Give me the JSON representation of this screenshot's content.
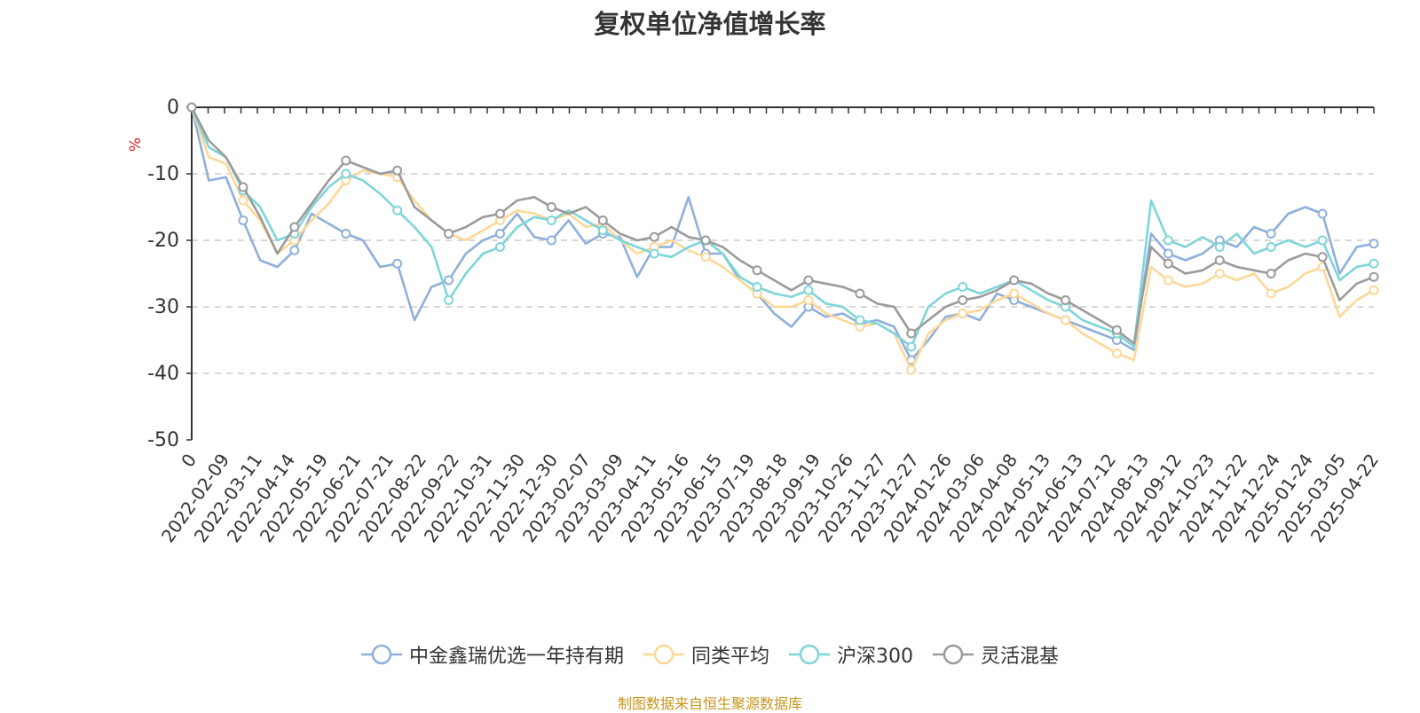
{
  "title": "复权单位净值增长率",
  "source": "制图数据来自恒生聚源数据库",
  "chart_data": {
    "type": "line",
    "title": "复权单位净值增长率",
    "ylabel": "%",
    "ylim": [
      -50,
      0
    ],
    "yticks": [
      0,
      -10,
      -20,
      -30,
      -40,
      -50
    ],
    "grid": true,
    "legend_position": "bottom-center",
    "x_tick_labels": [
      "0",
      "2022-02-09",
      "2022-03-11",
      "2022-04-14",
      "2022-05-19",
      "2022-06-21",
      "2022-07-21",
      "2022-08-22",
      "2022-09-22",
      "2022-10-31",
      "2022-11-30",
      "2022-12-30",
      "2023-02-07",
      "2023-03-09",
      "2023-04-11",
      "2023-05-16",
      "2023-06-15",
      "2023-07-19",
      "2023-08-18",
      "2023-09-19",
      "2023-10-26",
      "2023-11-27",
      "2023-12-27",
      "2024-01-26",
      "2024-03-06",
      "2024-04-08",
      "2024-05-13",
      "2024-06-13",
      "2024-07-12",
      "2024-08-13",
      "2024-09-12",
      "2024-10-23",
      "2024-11-22",
      "2024-12-24",
      "2025-01-24",
      "2025-03-05",
      "2025-04-22"
    ],
    "series": [
      {
        "name": "中金鑫瑞优选一年持有期",
        "color": "#8fb0da",
        "values": [
          0,
          -11,
          -10.5,
          -17,
          -23,
          -24,
          -21.5,
          -16,
          -17.5,
          -19,
          -20,
          -24,
          -23.5,
          -32,
          -27,
          -26,
          -22,
          -20,
          -19,
          -16,
          -19.5,
          -20,
          -17,
          -20.5,
          -19,
          -19.5,
          -25.5,
          -21,
          -21,
          -13.5,
          -22,
          -22,
          -26,
          -28,
          -31,
          -33,
          -30,
          -31.5,
          -31,
          -32.5,
          -32,
          -33,
          -38,
          -35,
          -31.5,
          -31,
          -32,
          -28,
          -29,
          -30,
          -31,
          -32,
          -33,
          -34,
          -35,
          -36.5,
          -19,
          -22,
          -23,
          -22,
          -20,
          -21,
          -18,
          -19,
          -16,
          -15,
          -16,
          -25,
          -21,
          -20.5
        ]
      },
      {
        "name": "同类平均",
        "color": "#fdd898",
        "values": [
          0,
          -7.5,
          -8.5,
          -14,
          -17,
          -22,
          -20,
          -17,
          -14.5,
          -11,
          -9.5,
          -10,
          -10.5,
          -14,
          -17,
          -19,
          -20,
          -18.5,
          -17,
          -15.5,
          -16,
          -17,
          -16,
          -18,
          -17.5,
          -20,
          -22,
          -21,
          -20,
          -21.5,
          -22.5,
          -24,
          -26,
          -28,
          -30,
          -30,
          -29,
          -31,
          -32,
          -33,
          -32.5,
          -34,
          -39.5,
          -34,
          -32,
          -31,
          -30.5,
          -29,
          -28,
          -29.5,
          -31,
          -32,
          -34,
          -35.5,
          -37,
          -38,
          -24,
          -26,
          -27,
          -26.5,
          -25,
          -26,
          -25,
          -28,
          -27,
          -25,
          -24,
          -31.5,
          -29,
          -27.5
        ]
      },
      {
        "name": "沪深300",
        "color": "#7fd5d9",
        "values": [
          0,
          -6,
          -7.5,
          -12.5,
          -15,
          -20,
          -19,
          -15,
          -12,
          -10,
          -11,
          -13,
          -15.5,
          -18,
          -21,
          -29,
          -25,
          -22,
          -21,
          -18,
          -16.5,
          -17,
          -15.5,
          -17,
          -18.5,
          -20,
          -21,
          -22,
          -22.5,
          -21,
          -20,
          -22,
          -25.5,
          -27,
          -28,
          -28.5,
          -27.5,
          -29.5,
          -30,
          -32,
          -32.5,
          -34,
          -36,
          -30,
          -28,
          -27,
          -28,
          -27,
          -26,
          -27.5,
          -29,
          -30,
          -32,
          -33,
          -34,
          -36,
          -14,
          -20,
          -21,
          -19.5,
          -21,
          -19,
          -22,
          -21,
          -20,
          -21,
          -20,
          -26,
          -24,
          -23.5
        ]
      },
      {
        "name": "灵活混基",
        "color": "#9b9b9b",
        "values": [
          0,
          -5,
          -7.5,
          -12,
          -16.5,
          -22,
          -18,
          -14.5,
          -11,
          -8,
          -9,
          -10,
          -9.5,
          -15,
          -17,
          -19,
          -18,
          -16.5,
          -16,
          -14,
          -13.5,
          -15,
          -16,
          -15,
          -17,
          -19,
          -20,
          -19.5,
          -18,
          -19.5,
          -20,
          -21,
          -23,
          -24.5,
          -26,
          -27.5,
          -26,
          -26.5,
          -27,
          -28,
          -29.5,
          -30,
          -34,
          -32,
          -30,
          -29,
          -28.5,
          -27.5,
          -26,
          -26.5,
          -28,
          -29,
          -30.5,
          -32,
          -33.5,
          -35.5,
          -21,
          -23.5,
          -25,
          -24.5,
          -23,
          -24,
          -24.5,
          -25,
          -23,
          -22,
          -22.5,
          -29,
          -26.5,
          -25.5
        ]
      }
    ]
  }
}
